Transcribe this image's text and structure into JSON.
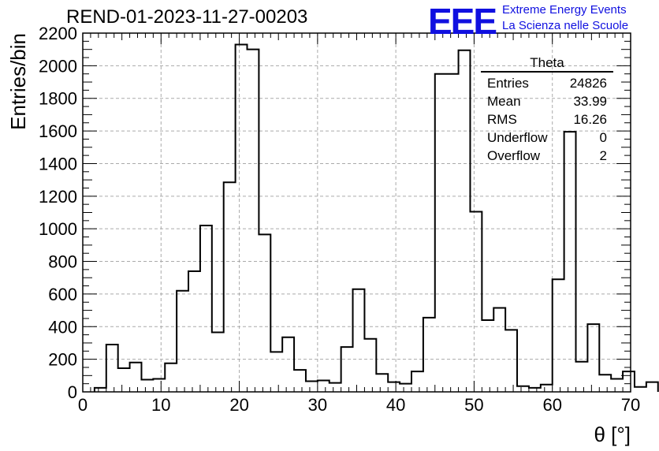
{
  "header": {
    "run_title": "REND-01-2023-11-27-00203",
    "logo_mark": "EEE",
    "logo_line1": "Extreme Energy Events",
    "logo_line2": "La Scienza nelle Scuole",
    "brand_color": "#1010e0"
  },
  "stats": {
    "title": "Theta",
    "rows": [
      {
        "label": "Entries",
        "value": "24826"
      },
      {
        "label": "Mean",
        "value": "33.99"
      },
      {
        "label": "RMS",
        "value": "16.26"
      },
      {
        "label": "Underflow",
        "value": "0"
      },
      {
        "label": "Overflow",
        "value": "2"
      }
    ]
  },
  "chart_data": {
    "type": "bar",
    "style": "step-histogram",
    "title": "REND-01-2023-11-27-00203",
    "xlabel": "θ [°]",
    "ylabel": "Entries/bin",
    "xlim": [
      0,
      70
    ],
    "ylim": [
      0,
      2200
    ],
    "bin_width": 1.5,
    "x_start": 1.5,
    "grid": true,
    "x_ticks": [
      0,
      10,
      20,
      30,
      40,
      50,
      60,
      70
    ],
    "y_ticks": [
      0,
      200,
      400,
      600,
      800,
      1000,
      1200,
      1400,
      1600,
      1800,
      2000,
      2200
    ],
    "values": [
      25,
      290,
      145,
      180,
      75,
      80,
      175,
      620,
      740,
      1020,
      365,
      1285,
      2130,
      2100,
      965,
      245,
      335,
      135,
      65,
      70,
      55,
      275,
      630,
      325,
      110,
      60,
      50,
      125,
      455,
      1950,
      1950,
      2095,
      1105,
      440,
      515,
      380,
      35,
      25,
      45,
      690,
      1595,
      185,
      415,
      105,
      80,
      125,
      30,
      60
    ],
    "line_color": "#000000"
  }
}
